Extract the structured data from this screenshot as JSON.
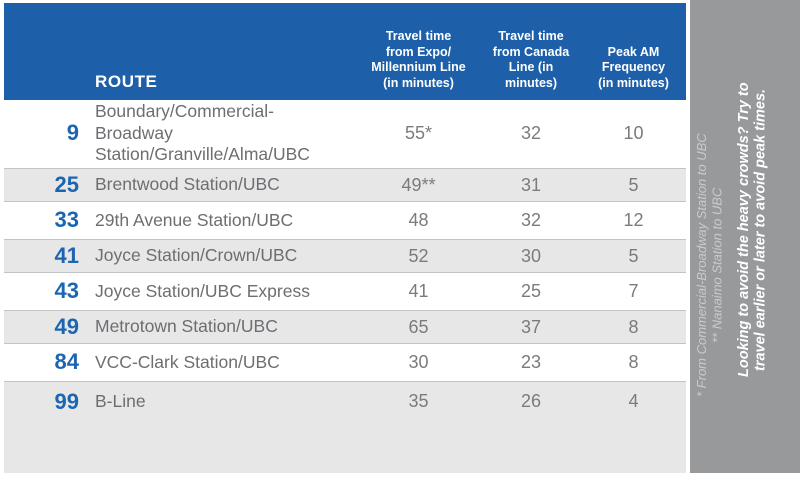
{
  "table": {
    "route_header": "ROUTE",
    "columns": [
      {
        "label": "Travel time\nfrom Expo/\nMillennium Line\n(in minutes)"
      },
      {
        "label": "Travel time\nfrom Canada\nLine (in\nminutes)"
      },
      {
        "label": "Peak AM\nFrequency\n(in minutes)"
      }
    ],
    "rows": [
      {
        "number": "9",
        "name": "Boundary/Commercial-Broadway\nStation/Granville/Alma/UBC",
        "expo": "55*",
        "canada": "32",
        "freq": "10"
      },
      {
        "number": "25",
        "name": "Brentwood Station/UBC",
        "expo": "49**",
        "canada": "31",
        "freq": "5"
      },
      {
        "number": "33",
        "name": "29th Avenue Station/UBC",
        "expo": "48",
        "canada": "32",
        "freq": "12"
      },
      {
        "number": "41",
        "name": "Joyce Station/Crown/UBC",
        "expo": "52",
        "canada": "30",
        "freq": "5"
      },
      {
        "number": "43",
        "name": "Joyce Station/UBC Express",
        "expo": "41",
        "canada": "25",
        "freq": "7"
      },
      {
        "number": "49",
        "name": "Metrotown Station/UBC",
        "expo": "65",
        "canada": "37",
        "freq": "8"
      },
      {
        "number": "84",
        "name": "VCC-Clark Station/UBC",
        "expo": "30",
        "canada": "23",
        "freq": "8"
      },
      {
        "number": "99",
        "name": "B-Line",
        "expo": "35",
        "canada": "26",
        "freq": "4"
      }
    ]
  },
  "sidebar": {
    "footnotes": "* From Commercial-Broadway Station to UBC\n** Nanaimo Station to UBC",
    "message": "Looking to avoid the heavy crowds? Try to\ntravel earlier or later to avoid peak times."
  },
  "colors": {
    "header_blue": "#1e5fa9",
    "route_number_blue": "#1b65b1",
    "row_gray": "#e7e7e8",
    "sidebar_gray": "#97999b",
    "text_gray": "#6d6e71",
    "value_gray": "#7a7b7e",
    "separator_gray": "#c2c3c5"
  }
}
